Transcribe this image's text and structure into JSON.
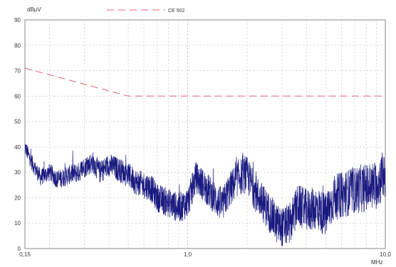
{
  "chart_data": {
    "type": "line",
    "xscale": "log",
    "xlim": [
      0.15,
      10.0
    ],
    "ylim": [
      0,
      90
    ],
    "yticks": [
      0,
      10,
      20,
      30,
      40,
      50,
      60,
      70,
      80,
      90
    ],
    "ytick_labels": [
      "0",
      "10",
      "20",
      "30",
      "40",
      "50",
      "60",
      "70",
      "80",
      "90"
    ],
    "xtick_labels": [
      {
        "x": 0.15,
        "label": "0,15"
      },
      {
        "x": 1.0,
        "label": "1,0"
      },
      {
        "x": 10.0,
        "label": "10,0"
      }
    ],
    "yunit": "dBµV",
    "xunit": "MHz",
    "grid": true,
    "legend_placement": "top-center",
    "series": [
      {
        "name": "CE 502",
        "style": "dashed",
        "color": "#e06070",
        "x": [
          0.15,
          0.5,
          10.0
        ],
        "y": [
          71,
          60,
          60
        ]
      },
      {
        "style": "solid-noisy",
        "color": "#1a1a80",
        "x": [
          0.15,
          0.16,
          0.17,
          0.18,
          0.2,
          0.22,
          0.25,
          0.28,
          0.3,
          0.33,
          0.36,
          0.4,
          0.45,
          0.5,
          0.55,
          0.6,
          0.65,
          0.7,
          0.8,
          0.9,
          1.0,
          1.1,
          1.2,
          1.3,
          1.4,
          1.5,
          1.6,
          1.8,
          2.0,
          2.2,
          2.5,
          2.8,
          3.0,
          3.3,
          3.6,
          4.0,
          4.5,
          5.0,
          5.5,
          6.0,
          7.0,
          8.0,
          9.0,
          10.0
        ],
        "y": [
          40,
          35,
          31,
          28,
          30,
          27,
          29,
          30,
          32,
          34,
          30,
          33,
          31,
          29,
          26,
          25,
          24,
          20,
          18,
          16,
          18,
          28,
          25,
          22,
          19,
          17,
          22,
          28,
          29,
          22,
          16,
          10,
          8,
          10,
          17,
          15,
          16,
          13,
          20,
          21,
          23,
          24,
          25,
          30
        ]
      }
    ]
  }
}
